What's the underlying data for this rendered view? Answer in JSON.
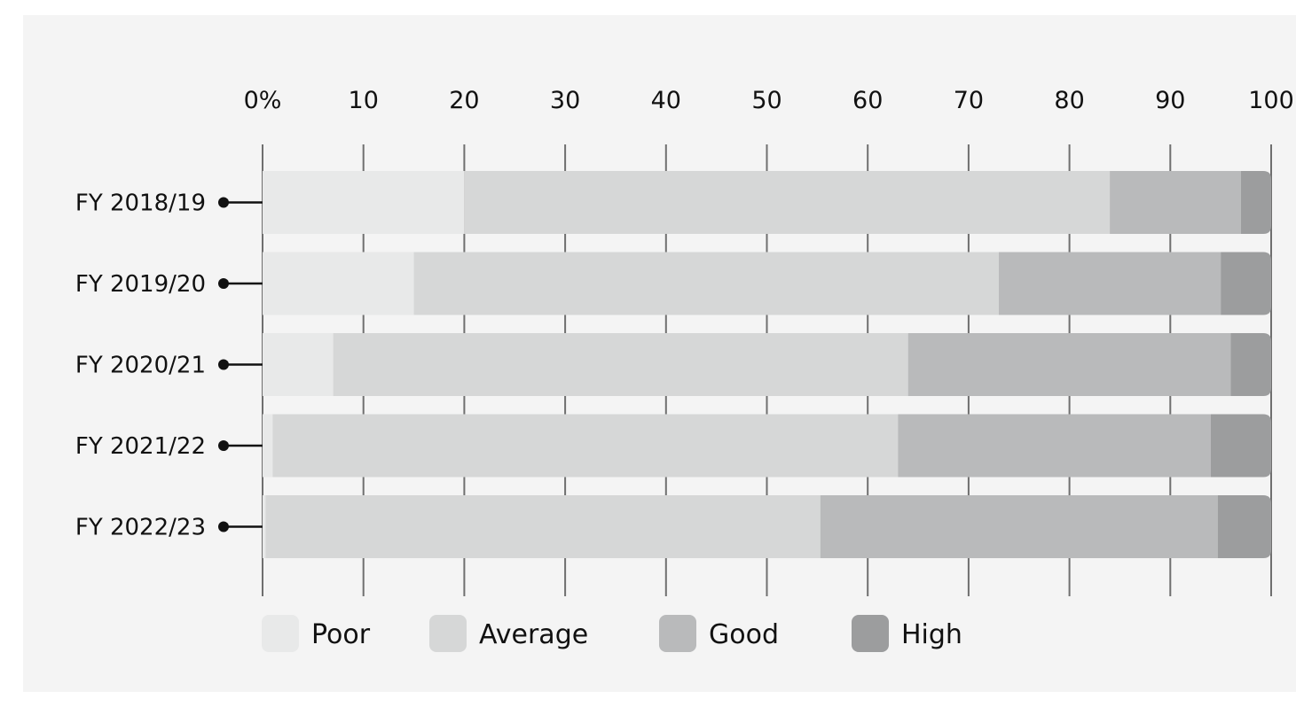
{
  "chart_data": {
    "type": "bar",
    "orientation": "horizontal",
    "stacked": true,
    "title": "",
    "xlabel": "",
    "ylabel": "",
    "xlim": [
      0,
      100
    ],
    "x_ticks": [
      "0%",
      "10",
      "20",
      "30",
      "40",
      "50",
      "60",
      "70",
      "80",
      "90",
      "100"
    ],
    "grid": true,
    "legend_position": "bottom",
    "categories": [
      "FY 2018/19",
      "FY 2019/20",
      "FY 2020/21",
      "FY 2021/22",
      "FY 2022/23"
    ],
    "series": [
      {
        "name": "Poor",
        "color": "#e8e9e9",
        "values": [
          20,
          15,
          7,
          1,
          0.3
        ]
      },
      {
        "name": "Average",
        "color": "#d6d7d7",
        "values": [
          64,
          58,
          57,
          62,
          55
        ]
      },
      {
        "name": "Good",
        "color": "#b9babb",
        "values": [
          13,
          22,
          32,
          31,
          39.4
        ]
      },
      {
        "name": "High",
        "color": "#9c9d9e",
        "values": [
          3,
          5,
          4,
          6,
          5.3
        ]
      }
    ]
  }
}
